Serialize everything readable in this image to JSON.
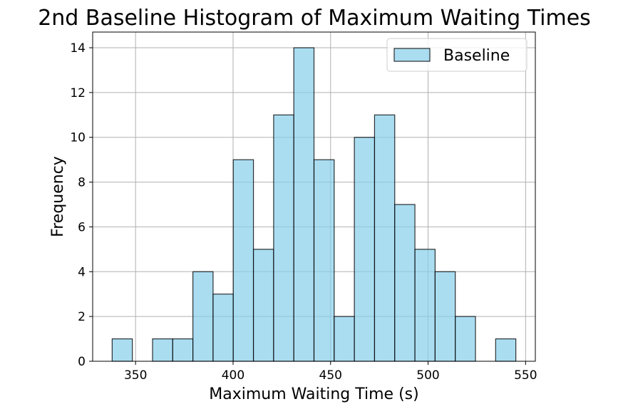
{
  "chart_data": {
    "type": "bar",
    "title": "2nd Baseline Histogram of Maximum Waiting Times",
    "xlabel": "Maximum Waiting Time (s)",
    "ylabel": "Frequency",
    "xlim": [
      328,
      555
    ],
    "ylim": [
      0,
      14.7
    ],
    "xticks": [
      350,
      400,
      450,
      500,
      550
    ],
    "yticks": [
      0,
      2,
      4,
      6,
      8,
      10,
      12,
      14
    ],
    "grid": true,
    "legend_position": "top-right",
    "series": [
      {
        "name": "Baseline",
        "color": "#87ceeb",
        "edge_color": "#000000",
        "bin_start": 338,
        "bin_width": 10.35,
        "values": [
          1,
          0,
          1,
          1,
          4,
          3,
          9,
          5,
          11,
          14,
          9,
          2,
          10,
          11,
          7,
          5,
          4,
          2,
          0,
          1
        ]
      }
    ]
  }
}
